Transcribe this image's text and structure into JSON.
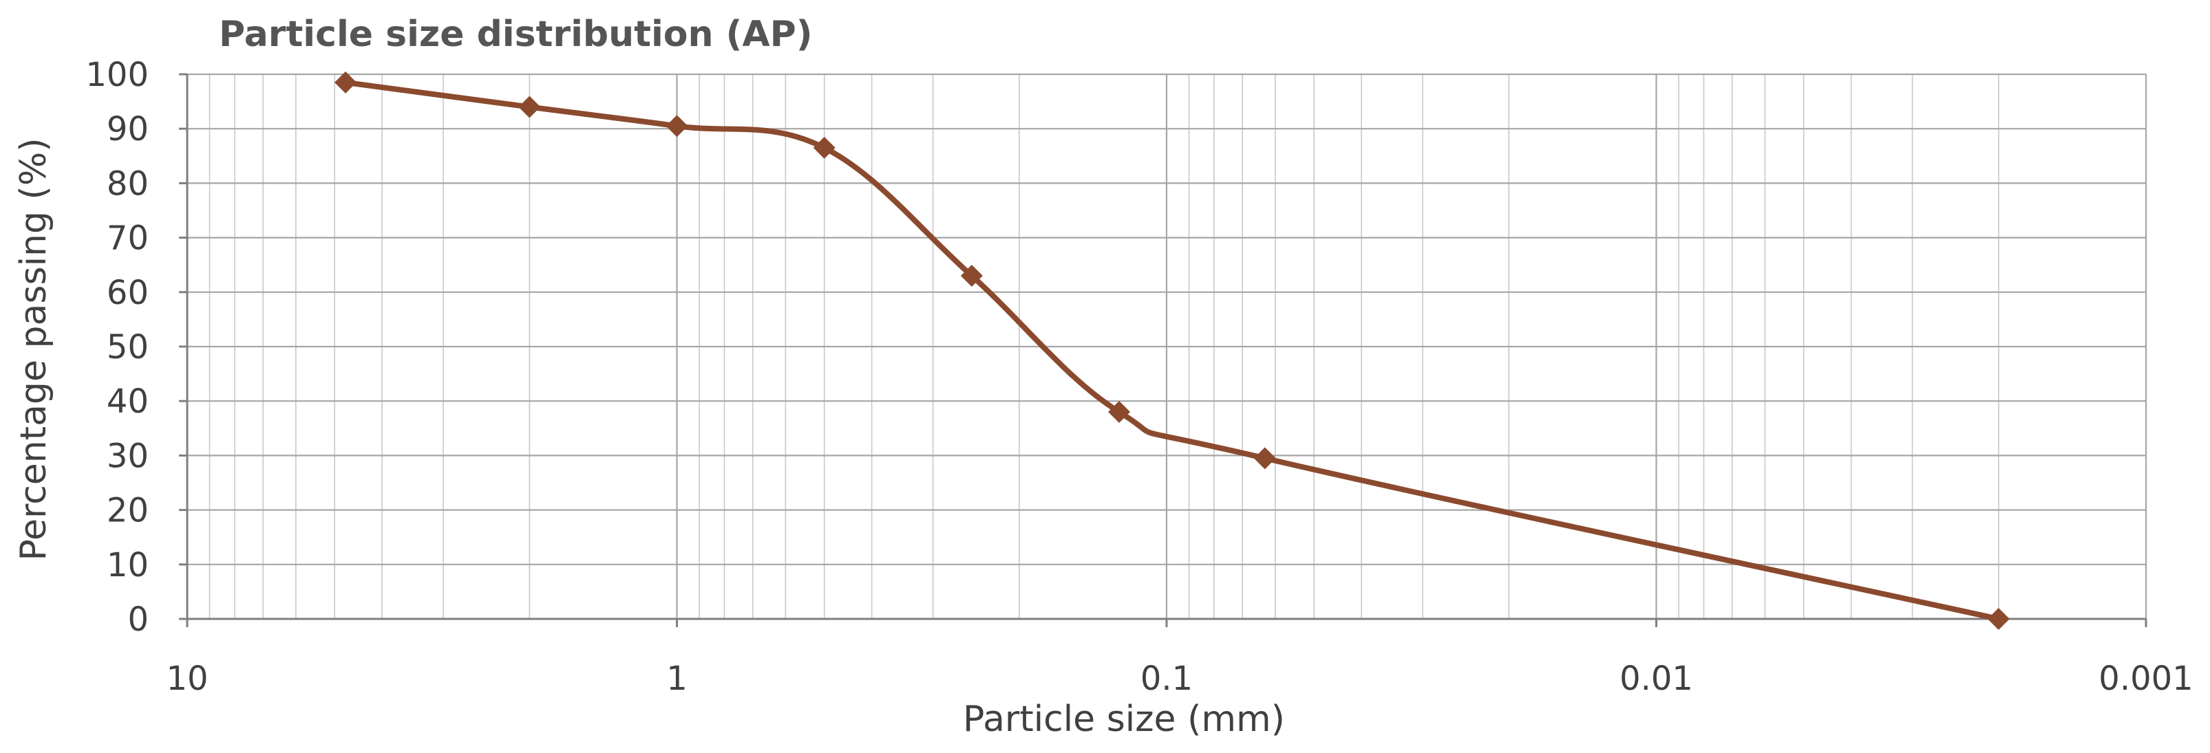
{
  "chart_data": {
    "type": "line",
    "title": "Particle size distribution (AP)",
    "xlabel": "Particle size (mm)",
    "ylabel": "Percentage passing (%)",
    "x_scale": "log",
    "x_reversed": true,
    "xlim": [
      10,
      0.001
    ],
    "ylim": [
      0,
      100
    ],
    "x_ticks": [
      "10",
      "1",
      "0.1",
      "0.01",
      "0.001"
    ],
    "x_tick_values": [
      10,
      1,
      0.1,
      0.01,
      0.001
    ],
    "y_ticks": [
      "0",
      "10",
      "20",
      "30",
      "40",
      "50",
      "60",
      "70",
      "80",
      "90",
      "100"
    ],
    "y_tick_values": [
      0,
      10,
      20,
      30,
      40,
      50,
      60,
      70,
      80,
      90,
      100
    ],
    "grid": true,
    "legend": "none",
    "series": [
      {
        "color": "#8B4A2E",
        "marker": "diamond",
        "smooth": true,
        "x": [
          4.75,
          2,
          1,
          0.5,
          0.25,
          0.125,
          0.063,
          0.002
        ],
        "y": [
          98.5,
          94,
          90.5,
          86.5,
          63,
          38,
          29.5,
          0
        ]
      }
    ]
  }
}
